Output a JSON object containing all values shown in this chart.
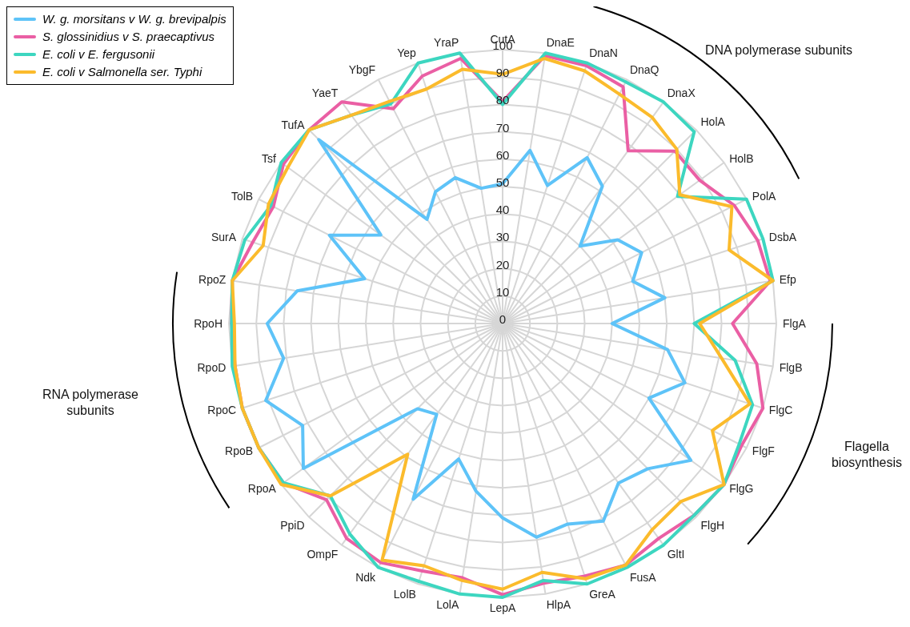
{
  "chart_data": {
    "type": "radar",
    "categories": [
      "CutA",
      "DnaE",
      "DnaN",
      "DnaQ",
      "DnaX",
      "HolA",
      "HolB",
      "PolA",
      "DsbA",
      "Efp",
      "FlgA",
      "FlgB",
      "FlgC",
      "FlgF",
      "FlgG",
      "FlgH",
      "GltI",
      "FusA",
      "GreA",
      "HlpA",
      "LepA",
      "LolA",
      "LolB",
      "Ndk",
      "OmpF",
      "PpiD",
      "RpoA",
      "RpoB",
      "RpoC",
      "RpoD",
      "RpoH",
      "RpoZ",
      "SurA",
      "TolB",
      "Tsf",
      "TufA",
      "YaeT",
      "YbgF",
      "Yep",
      "YraP"
    ],
    "series": [
      {
        "name": "W. g. morsitans v W. g. brevipalpis",
        "color": "#5ec3f8",
        "values": [
          51,
          64,
          53,
          68,
          62,
          40,
          52,
          57,
          50,
          60,
          40,
          61,
          70,
          60,
          85,
          75,
          72,
          81,
          77,
          79,
          71,
          62,
          52,
          72,
          41,
          44,
          90,
          82,
          91,
          81,
          86,
          76,
          53,
          71,
          55,
          95,
          47,
          54,
          56,
          50
        ]
      },
      {
        "name": "S. glossinidius v S. praecaptivus",
        "color": "#ea5fa4",
        "values": [
          81,
          99,
          99,
          97,
          78,
          89,
          89,
          95,
          98,
          99,
          84,
          94,
          100,
          98,
          100,
          99,
          97,
          99,
          97,
          96,
          99,
          94,
          95,
          98,
          97,
          91,
          99,
          100,
          100,
          99,
          99,
          100,
          96,
          94,
          99,
          100,
          100,
          88,
          95,
          98
        ]
      },
      {
        "name": "E. coli v E. fergusonii",
        "color": "#3dd6c0",
        "values": [
          80,
          100,
          100,
          99,
          100,
          99,
          79,
          100,
          100,
          100,
          70,
          86,
          96,
          97,
          100,
          99,
          100,
          100,
          100,
          95,
          100,
          100,
          99,
          100,
          95,
          89,
          99,
          100,
          100,
          100,
          99,
          100,
          99,
          95,
          100,
          100,
          94,
          90,
          100,
          100
        ]
      },
      {
        "name": "E. coli v Salmonella ser. Typhi",
        "color": "#fbbb2c",
        "values": [
          91,
          98,
          97,
          94,
          93,
          90,
          80,
          94,
          87,
          100,
          72,
          81,
          95,
          86,
          100,
          92,
          93,
          99,
          98,
          92,
          97,
          95,
          93,
          97,
          59,
          89,
          100,
          100,
          100,
          99,
          98,
          100,
          92,
          96,
          97,
          100,
          94,
          91,
          90,
          94
        ]
      }
    ],
    "ylim": [
      0,
      100
    ],
    "yticks": [
      0,
      10,
      20,
      30,
      40,
      50,
      60,
      70,
      80,
      90,
      100
    ],
    "grid": true,
    "legend": "top left",
    "annotations": [
      "DNA polymerase subunits",
      "Flagella biosynthesis",
      "RNA polymerase subunits"
    ]
  }
}
